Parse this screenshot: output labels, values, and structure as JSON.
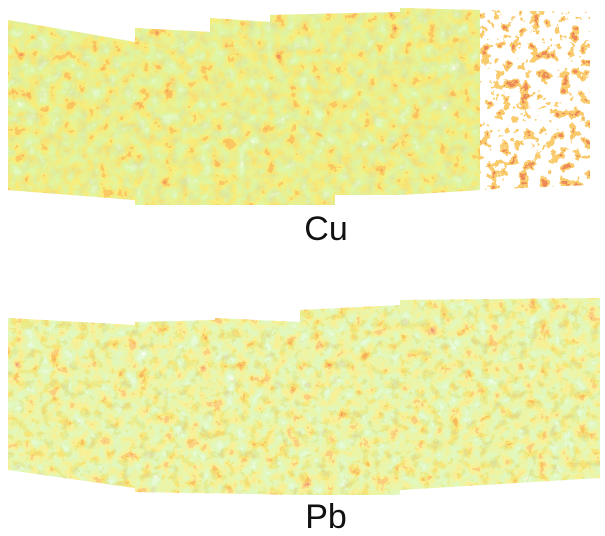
{
  "panels": [
    {
      "label": "Cu"
    },
    {
      "label": "Pb"
    }
  ]
}
